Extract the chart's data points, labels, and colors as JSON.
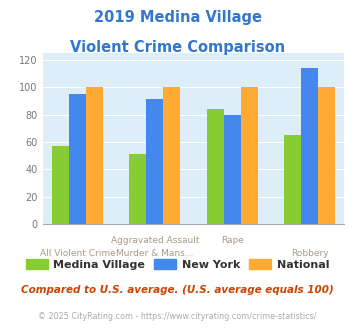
{
  "title_line1": "2019 Medina Village",
  "title_line2": "Violent Crime Comparison",
  "series": {
    "Medina Village": [
      57,
      51,
      84,
      65
    ],
    "New York": [
      95,
      91,
      80,
      114
    ],
    "National": [
      100,
      100,
      100,
      100
    ]
  },
  "colors": {
    "Medina Village": "#88cc33",
    "New York": "#4488ee",
    "National": "#ffaa33"
  },
  "ylim": [
    0,
    125
  ],
  "yticks": [
    0,
    20,
    40,
    60,
    80,
    100,
    120
  ],
  "x_top_labels": [
    "",
    "Aggravated Assault",
    "Rape",
    ""
  ],
  "x_bottom_labels": [
    "All Violent Crime",
    "Murder & Mans...",
    "",
    "Robbery"
  ],
  "footnote1": "Compared to U.S. average. (U.S. average equals 100)",
  "footnote2": "© 2025 CityRating.com - https://www.cityrating.com/crime-statistics/",
  "title_color": "#3377cc",
  "footnote1_color": "#cc4400",
  "footnote2_color": "#aaaaaa",
  "link_color": "#4488ee",
  "bg_color": "#ddeef8",
  "bar_width": 0.22,
  "group_positions": [
    0,
    1,
    2,
    3
  ]
}
